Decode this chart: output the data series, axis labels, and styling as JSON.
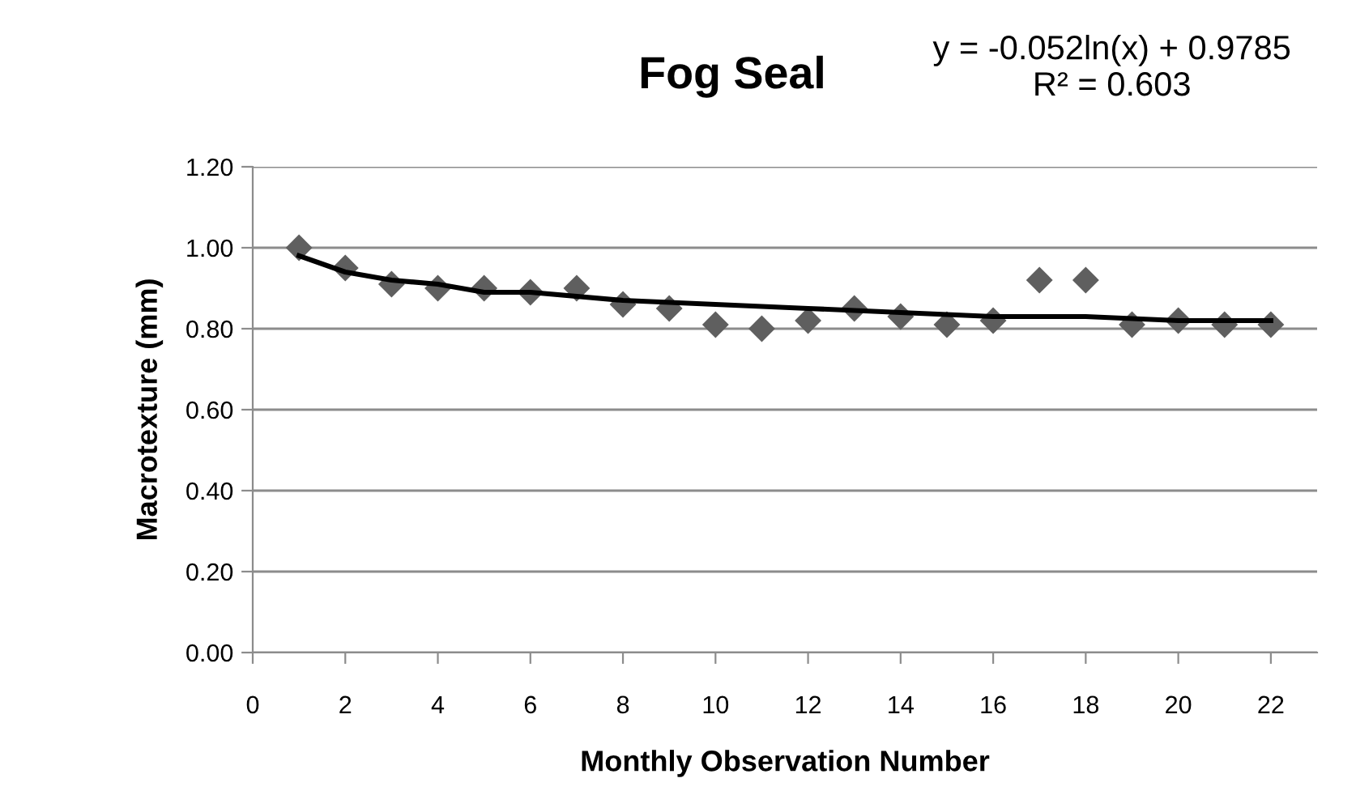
{
  "chart_data": {
    "type": "scatter",
    "title": "Fog Seal",
    "xlabel": "Monthly Observation Number",
    "ylabel": "Macrotexture (mm)",
    "annotations": [
      "y = -0.052ln(x) + 0.9785\nR² = 0.603"
    ],
    "series": [
      {
        "color": "#5f5f5f",
        "marker": "diamond",
        "x": [
          1,
          2,
          3,
          4,
          5,
          6,
          7,
          8,
          9,
          10,
          11,
          12,
          13,
          14,
          15,
          16,
          17,
          18,
          19,
          20,
          21,
          22
        ],
        "values": [
          1.0,
          0.95,
          0.91,
          0.9,
          0.9,
          0.89,
          0.9,
          0.86,
          0.85,
          0.81,
          0.8,
          0.82,
          0.85,
          0.83,
          0.81,
          0.82,
          0.92,
          0.92,
          0.81,
          0.82,
          0.81,
          0.81
        ]
      },
      {
        "type": "line",
        "color": "#000000",
        "marker": "none",
        "line_style": "solid",
        "x": [
          1,
          2,
          3,
          4,
          5,
          6,
          8,
          10,
          12,
          14,
          16,
          18,
          20,
          22
        ],
        "values": [
          0.98,
          0.94,
          0.92,
          0.91,
          0.89,
          0.89,
          0.87,
          0.86,
          0.85,
          0.84,
          0.83,
          0.83,
          0.82,
          0.82
        ]
      }
    ],
    "xlim": [
      0,
      23
    ],
    "xticks": [
      0,
      2,
      4,
      6,
      8,
      10,
      12,
      14,
      16,
      18,
      20,
      22
    ],
    "ylim": [
      0,
      1.2
    ],
    "yticks": [
      {
        "value": 0,
        "label": "0.00"
      },
      {
        "value": 0.2,
        "label": "0.20"
      },
      {
        "value": 0.4,
        "label": "0.40"
      },
      {
        "value": 0.6,
        "label": "0.60"
      },
      {
        "value": 0.8,
        "label": "0.80"
      },
      {
        "value": 1.0,
        "label": "1.00"
      },
      {
        "value": 1.2,
        "label": "1.20"
      }
    ],
    "grid": "y",
    "legend": false
  }
}
